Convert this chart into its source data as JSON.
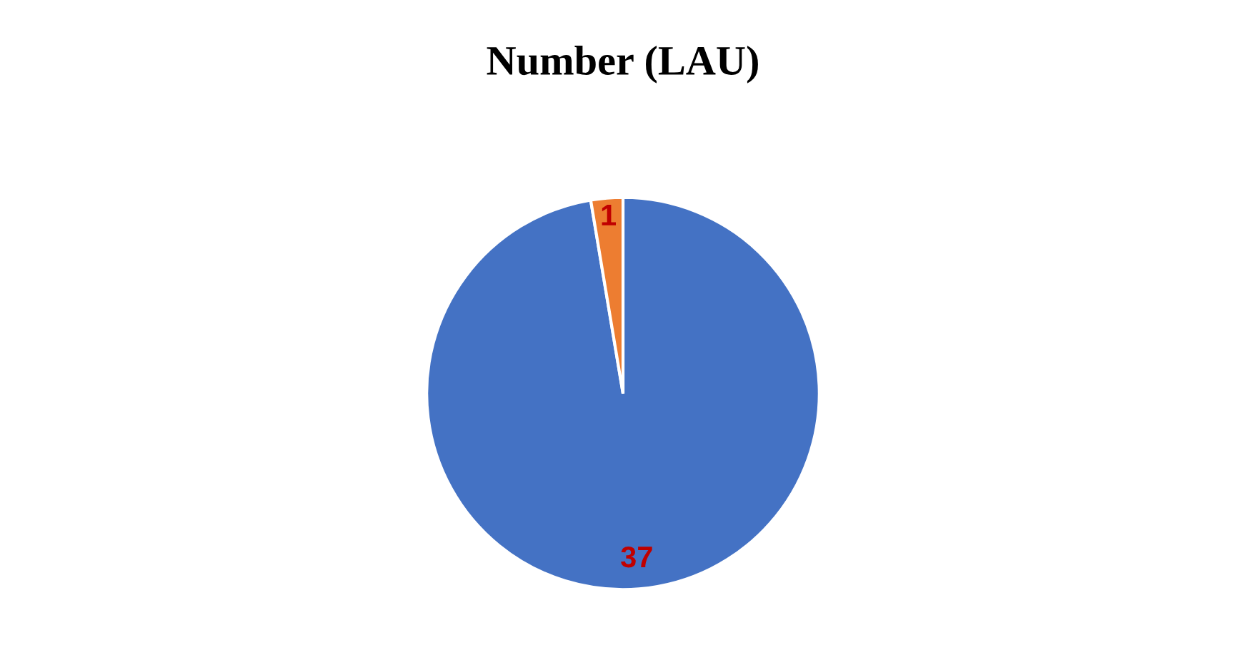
{
  "chart_data": {
    "type": "pie",
    "title": "Number (LAU)",
    "categories": [
      null,
      null
    ],
    "values": [
      37,
      1
    ],
    "colors": [
      "#4472c4",
      "#ed7d31"
    ],
    "data_labels": true
  }
}
